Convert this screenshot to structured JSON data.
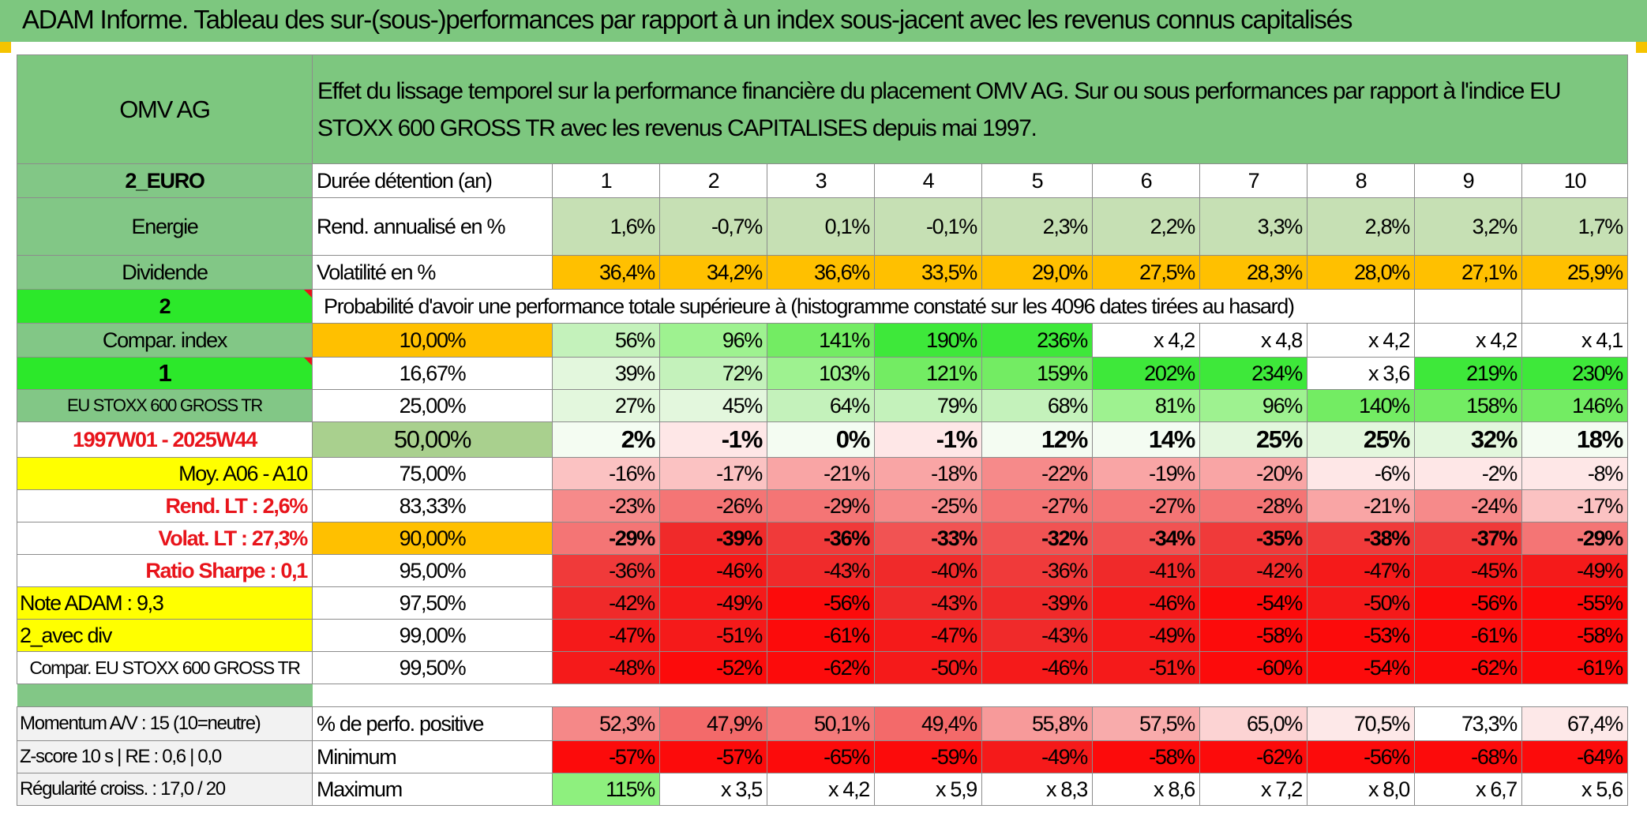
{
  "title": "ADAM Informe. Tableau des sur-(sous-)performances par rapport à un index sous-jacent avec les revenus connus capitalisés",
  "header": {
    "stock": "OMV AG",
    "description": "Effet du lissage temporel sur la performance financière du placement OMV AG. Sur ou sous performances par rapport à l'indice EU STOXX 600 GROSS TR avec les revenus CAPITALISES depuis mai 1997."
  },
  "left": {
    "currency": "2_EURO",
    "sector": "Energie",
    "dividend": "Dividende",
    "num2": "2",
    "compar_index": "Compar. index",
    "num1": "1",
    "index_name": "EU STOXX 600 GROSS TR",
    "period": "1997W01 - 2025W44",
    "moy": "Moy. A06 - A10",
    "rend_lt": "Rend. LT :   2,6%",
    "volat_lt": "Volat. LT :   27,3%",
    "sharpe": "Ratio Sharpe :    0,1",
    "note": "Note ADAM : 9,3",
    "avec_div": "2_avec div",
    "compar2": "Compar. EU STOXX 600 GROSS TR",
    "momentum": "Momentum A/V : 15 (10=neutre)",
    "zscore": "Z-score 10 s | RE : 0,6 | 0,0",
    "regularite": "Régularité croiss. : 17,0 / 20"
  },
  "labels": {
    "duree": "Durée détention (an)",
    "rend": "Rend. annualisé en %",
    "volat": "Volatilité en %",
    "proba": "Probabilité d'avoir une performance totale supérieure à (histogramme constaté sur les 4096 dates tirées au hasard)",
    "pct_pos": "% de perfo. positive",
    "minimum": "Minimum",
    "maximum": "Maximum"
  },
  "years": [
    "1",
    "2",
    "3",
    "4",
    "5",
    "6",
    "7",
    "8",
    "9",
    "10"
  ],
  "rend": [
    "1,6%",
    "-0,7%",
    "0,1%",
    "-0,1%",
    "2,3%",
    "2,2%",
    "3,3%",
    "2,8%",
    "3,2%",
    "1,7%"
  ],
  "volat": [
    "36,4%",
    "34,2%",
    "36,6%",
    "33,5%",
    "29,0%",
    "27,5%",
    "28,3%",
    "28,0%",
    "27,1%",
    "25,9%"
  ],
  "percentile_rows": [
    {
      "p": "10,00%",
      "v": [
        "56%",
        "96%",
        "141%",
        "190%",
        "236%",
        "x 4,2",
        "x 4,8",
        "x 4,2",
        "x 4,2",
        "x 4,1"
      ]
    },
    {
      "p": "16,67%",
      "v": [
        "39%",
        "72%",
        "103%",
        "121%",
        "159%",
        "202%",
        "234%",
        "x 3,6",
        "219%",
        "230%"
      ]
    },
    {
      "p": "25,00%",
      "v": [
        "27%",
        "45%",
        "64%",
        "79%",
        "68%",
        "81%",
        "96%",
        "140%",
        "158%",
        "146%"
      ]
    },
    {
      "p": "50,00%",
      "v": [
        "2%",
        "-1%",
        "0%",
        "-1%",
        "12%",
        "14%",
        "25%",
        "25%",
        "32%",
        "18%"
      ]
    },
    {
      "p": "75,00%",
      "v": [
        "-16%",
        "-17%",
        "-21%",
        "-18%",
        "-22%",
        "-19%",
        "-20%",
        "-6%",
        "-2%",
        "-8%"
      ]
    },
    {
      "p": "83,33%",
      "v": [
        "-23%",
        "-26%",
        "-29%",
        "-25%",
        "-27%",
        "-27%",
        "-28%",
        "-21%",
        "-24%",
        "-17%"
      ]
    },
    {
      "p": "90,00%",
      "v": [
        "-29%",
        "-39%",
        "-36%",
        "-33%",
        "-32%",
        "-34%",
        "-35%",
        "-38%",
        "-37%",
        "-29%"
      ]
    },
    {
      "p": "95,00%",
      "v": [
        "-36%",
        "-46%",
        "-43%",
        "-40%",
        "-36%",
        "-41%",
        "-42%",
        "-47%",
        "-45%",
        "-49%"
      ]
    },
    {
      "p": "97,50%",
      "v": [
        "-42%",
        "-49%",
        "-56%",
        "-43%",
        "-39%",
        "-46%",
        "-54%",
        "-50%",
        "-56%",
        "-55%"
      ]
    },
    {
      "p": "99,00%",
      "v": [
        "-47%",
        "-51%",
        "-61%",
        "-47%",
        "-43%",
        "-49%",
        "-58%",
        "-53%",
        "-61%",
        "-58%"
      ]
    },
    {
      "p": "99,50%",
      "v": [
        "-48%",
        "-52%",
        "-62%",
        "-50%",
        "-46%",
        "-51%",
        "-60%",
        "-54%",
        "-62%",
        "-61%"
      ]
    }
  ],
  "pct_pos": [
    "52,3%",
    "47,9%",
    "50,1%",
    "49,4%",
    "55,8%",
    "57,5%",
    "65,0%",
    "70,5%",
    "73,3%",
    "67,4%"
  ],
  "minimum": [
    "-57%",
    "-57%",
    "-65%",
    "-59%",
    "-49%",
    "-58%",
    "-62%",
    "-56%",
    "-68%",
    "-64%"
  ],
  "maximum": [
    "115%",
    "x 3,5",
    "x 4,2",
    "x 5,9",
    "x 8,3",
    "x 8,6",
    "x 7,2",
    "x 8,0",
    "x 6,7",
    "x 5,6"
  ],
  "colors": {
    "title_green": "#7dc77f",
    "header_green": "#7dc77f",
    "label_green": "#82c786",
    "bright_green": "#2ce82a",
    "yellow": "#ffff00",
    "orange": "#ffc000",
    "rend_green": "#c6e0b4",
    "red_text": "#e8141b",
    "strong_red": "#ff0000"
  }
}
